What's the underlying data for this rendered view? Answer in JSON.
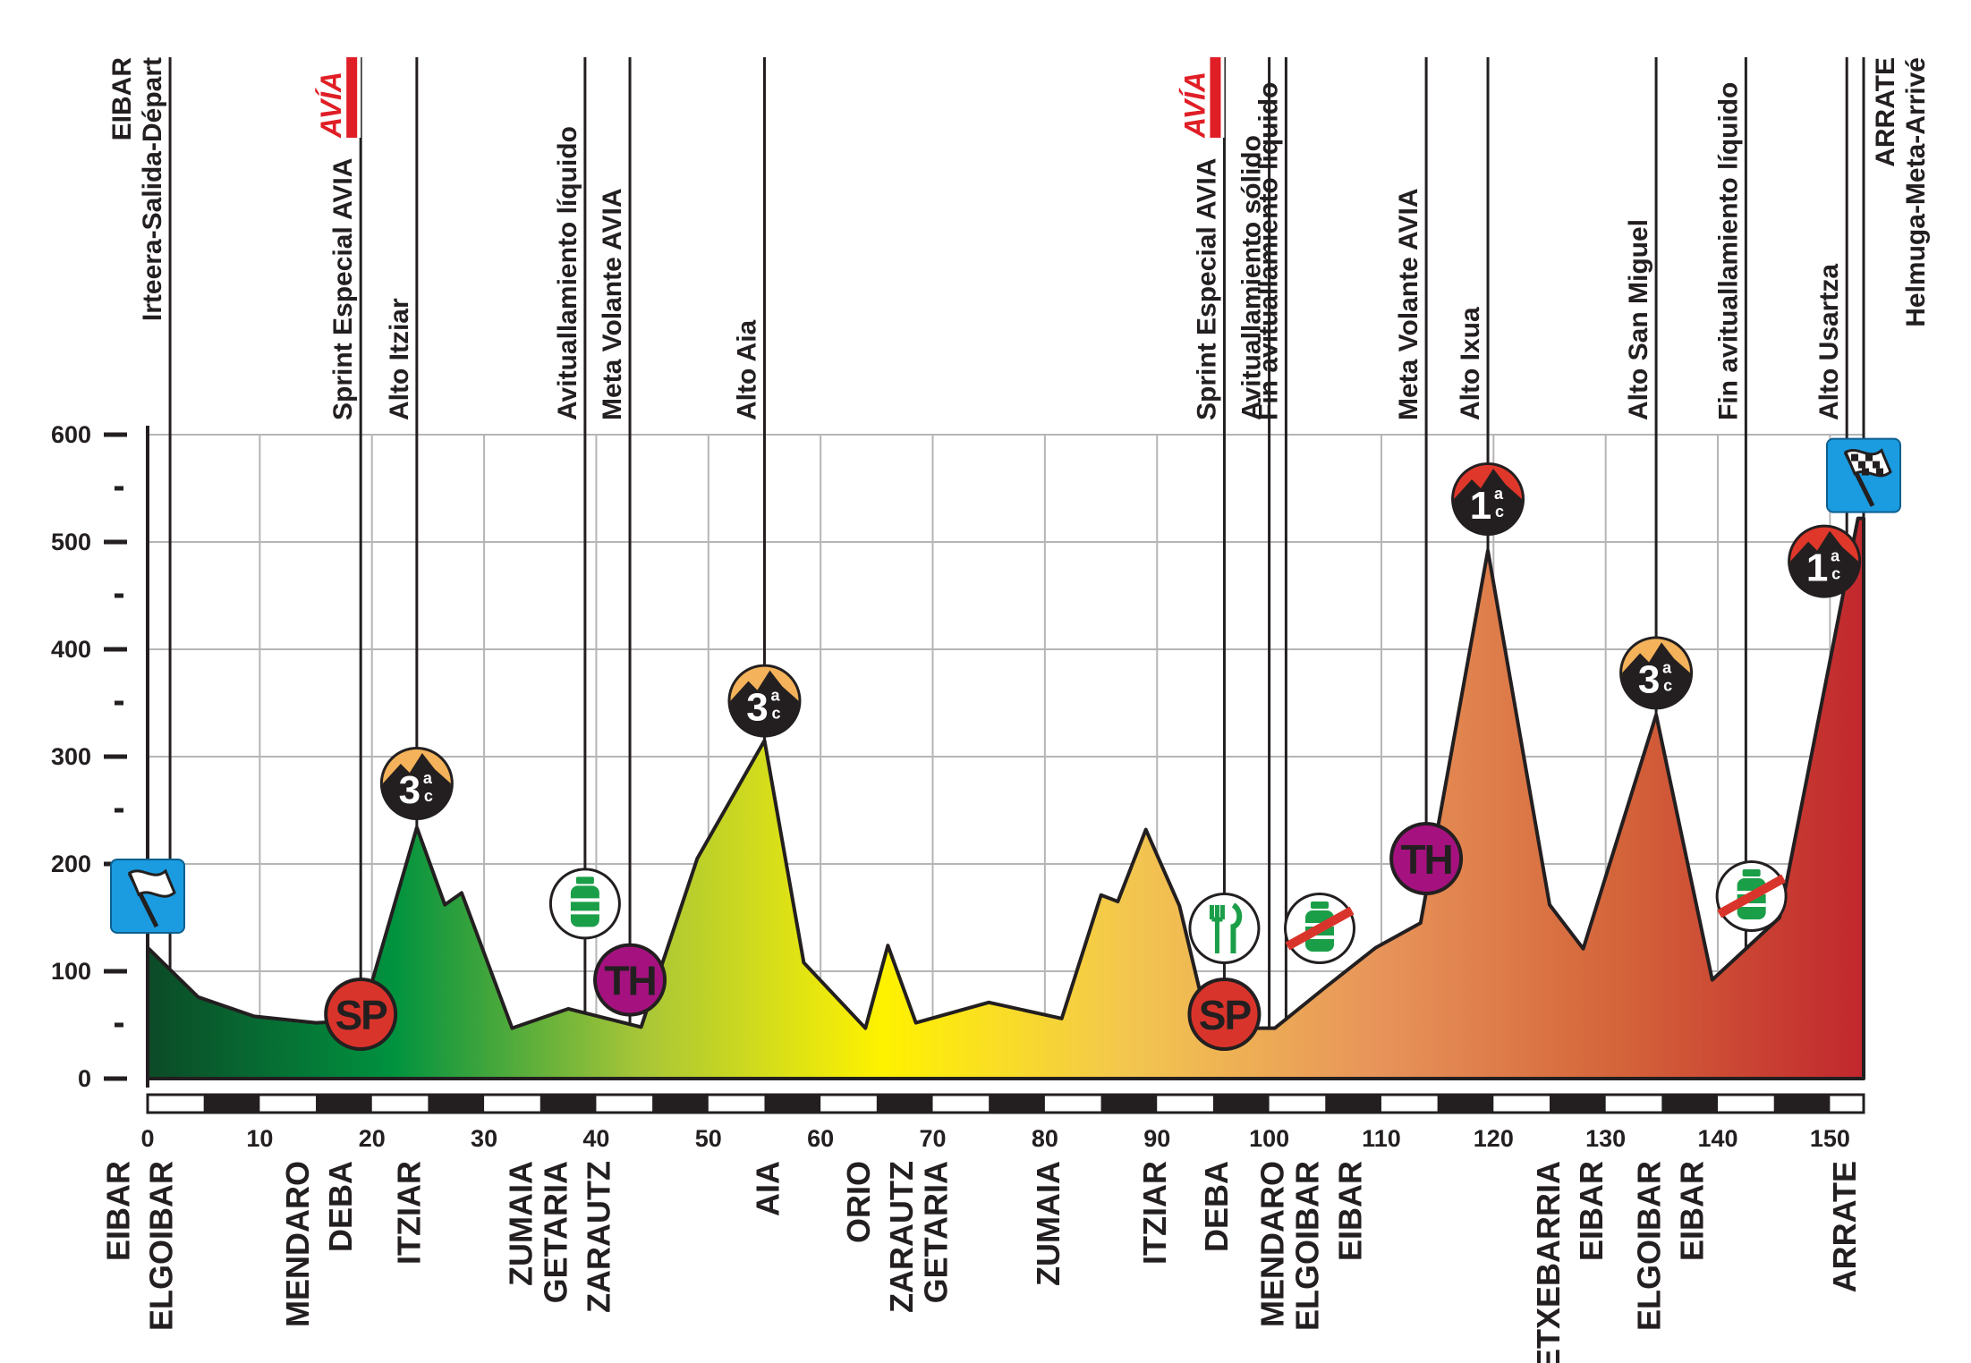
{
  "colors": {
    "grid": "#b5b5b5",
    "outline": "#231f20",
    "profile_gradient": [
      "#0c4a27",
      "#00923f",
      "#a6c538",
      "#fff200",
      "#f3c64f",
      "#e8955a",
      "#d4643a",
      "#c1272d"
    ],
    "sp": "#d9342b",
    "th": "#a5127f",
    "start_finish": "#1b9be0",
    "avia": "#e01e26",
    "feed": "#1b9e48",
    "cat3": "#f4b25a",
    "cat1": "#e0372b"
  },
  "chart_data": {
    "type": "area",
    "title": "",
    "xlabel": "",
    "ylabel": "",
    "xlim": [
      0,
      153
    ],
    "ylim": [
      0,
      600
    ],
    "grid": true,
    "x_ticks": [
      0,
      10,
      20,
      30,
      40,
      50,
      60,
      70,
      80,
      90,
      100,
      110,
      120,
      130,
      140,
      150
    ],
    "y_ticks": [
      0,
      100,
      200,
      300,
      400,
      500,
      600
    ],
    "profile": {
      "x": [
        0,
        4.5,
        9.5,
        15,
        19,
        24,
        26.5,
        28,
        32.5,
        37.5,
        44,
        49,
        55,
        58.5,
        64,
        66,
        68.5,
        75,
        81.5,
        85,
        86.5,
        89,
        92,
        94.5,
        97,
        100.5,
        105,
        109.5,
        113.5,
        119.5,
        125,
        128,
        134.5,
        139.5,
        145.5,
        152.5,
        153
      ],
      "y": [
        122,
        76,
        58,
        52,
        54,
        234,
        162,
        173,
        47,
        65,
        48,
        205,
        315,
        108,
        47,
        124,
        52,
        71,
        56,
        171,
        165,
        232,
        161,
        52,
        47,
        47,
        85,
        122,
        145,
        492,
        162,
        121,
        339,
        92,
        150,
        522,
        522
      ]
    },
    "passes": [
      {
        "km": 2,
        "label": "Irteera-Salida-Départ",
        "label2": "EIBAR"
      },
      {
        "km": 19,
        "label": "Sprint Especial AVIA",
        "avia": true
      },
      {
        "km": 24,
        "label": "Alto Itziar"
      },
      {
        "km": 39,
        "label": "Avituallamiento líquido"
      },
      {
        "km": 43,
        "label": "Meta Volante AVIA"
      },
      {
        "km": 55,
        "label": "Alto Aia"
      },
      {
        "km": 96,
        "label": "Sprint Especial AVIA",
        "avia": true
      },
      {
        "km": 100,
        "label": "Avituallamiento sólido"
      },
      {
        "km": 101.5,
        "label": "Fin avituallamiento líquido"
      },
      {
        "km": 114,
        "label": "Meta Volante AVIA"
      },
      {
        "km": 119.5,
        "label": "Alto Ixua"
      },
      {
        "km": 134.5,
        "label": "Alto San Miguel"
      },
      {
        "km": 142.5,
        "label": "Fin avituallamiento líquido"
      },
      {
        "km": 151.5,
        "label": "Alto Usartza"
      },
      {
        "km": 153,
        "label": "Helmuga-Meta-Arrivé",
        "label2": "ARRATE"
      }
    ],
    "avia_logo_text": "AVÍA",
    "markers": [
      {
        "type": "flag-start",
        "km": 0,
        "alt": 170
      },
      {
        "type": "sp",
        "km": 19,
        "alt": 60,
        "text": "SP"
      },
      {
        "type": "cat3",
        "km": 24,
        "alt": 275,
        "num": "3",
        "sup": "a",
        "sub": "c"
      },
      {
        "type": "feed",
        "km": 39,
        "alt": 163
      },
      {
        "type": "th",
        "km": 43,
        "alt": 92,
        "text": "TH"
      },
      {
        "type": "cat3",
        "km": 55,
        "alt": 352,
        "num": "3",
        "sup": "a",
        "sub": "c"
      },
      {
        "type": "sp",
        "km": 96,
        "alt": 60,
        "text": "SP"
      },
      {
        "type": "food",
        "km": 96,
        "alt": 140
      },
      {
        "type": "feed-end",
        "km": 104.5,
        "alt": 140
      },
      {
        "type": "th",
        "km": 114,
        "alt": 205,
        "text": "TH"
      },
      {
        "type": "cat1",
        "km": 119.5,
        "alt": 540,
        "num": "1",
        "sup": "a",
        "sub": "c"
      },
      {
        "type": "cat3",
        "km": 134.5,
        "alt": 378,
        "num": "3",
        "sup": "a",
        "sub": "c"
      },
      {
        "type": "feed-end",
        "km": 143,
        "alt": 170
      },
      {
        "type": "cat1",
        "km": 149.5,
        "alt": 482,
        "num": "1",
        "sup": "a",
        "sub": "c"
      },
      {
        "type": "flag-finish",
        "km": 153,
        "alt": 562
      }
    ],
    "places": [
      {
        "km": -1,
        "lines": [
          "EIBAR",
          "ELGOIBAR"
        ]
      },
      {
        "km": 15,
        "lines": [
          "MENDARO",
          "DEBA"
        ]
      },
      {
        "km": 23,
        "lines": [
          "ITZIAR"
        ]
      },
      {
        "km": 33,
        "lines": [
          "ZUMAIA"
        ]
      },
      {
        "km": 38,
        "lines": [
          "GETARIA",
          "ZARAUTZ"
        ]
      },
      {
        "km": 55,
        "lines": [
          "AIA"
        ]
      },
      {
        "km": 65,
        "lines": [
          "ORIO",
          "ZARAUTZ"
        ]
      },
      {
        "km": 70,
        "lines": [
          "GETARIA"
        ]
      },
      {
        "km": 80,
        "lines": [
          "ZUMAIA"
        ]
      },
      {
        "km": 89.5,
        "lines": [
          "ITZIAR"
        ]
      },
      {
        "km": 95,
        "lines": [
          "DEBA"
        ]
      },
      {
        "km": 100,
        "lines": [
          "MENDARO"
        ]
      },
      {
        "km": 105,
        "lines": [
          "ELGOIBAR",
          "EIBAR"
        ]
      },
      {
        "km": 126.5,
        "lines": [
          "ETXEBARRIA",
          "EIBAR"
        ]
      },
      {
        "km": 135.5,
        "lines": [
          "ELGOIBAR",
          "EIBAR"
        ]
      },
      {
        "km": 151,
        "lines": [
          "ARRATE"
        ]
      }
    ]
  }
}
